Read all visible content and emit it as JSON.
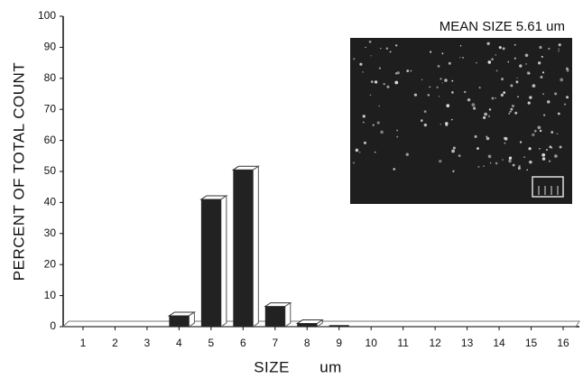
{
  "chart_data": {
    "type": "bar",
    "y_label": "PERCENT OF TOTAL COUNT",
    "x_label": "SIZE um",
    "annotation": "MEAN SIZE 5.61 um",
    "categories": [
      "1",
      "2",
      "3",
      "4",
      "5",
      "6",
      "7",
      "8",
      "9",
      "10",
      "11",
      "12",
      "13",
      "14",
      "15",
      "16"
    ],
    "values": [
      0,
      0,
      0,
      3.5,
      41,
      50.5,
      6.5,
      1,
      0.5,
      0,
      0,
      0,
      0,
      0,
      0,
      0
    ],
    "color": "#222222",
    "ylim": [
      0,
      100
    ],
    "yticks": [
      0,
      10,
      20,
      30,
      40,
      50,
      60,
      70,
      80,
      90,
      100
    ]
  }
}
